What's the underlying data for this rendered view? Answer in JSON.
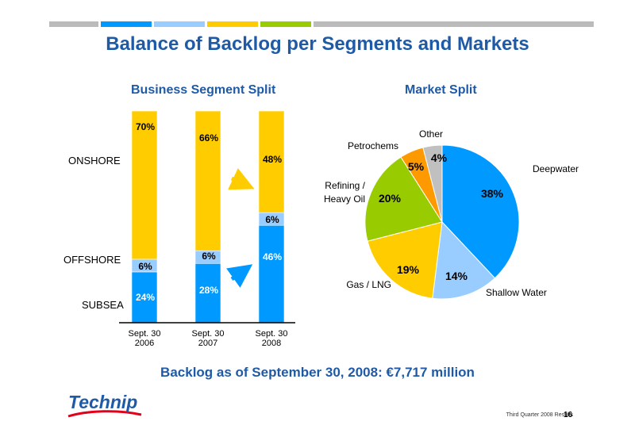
{
  "title": "Balance of Backlog per Segments and Markets",
  "segment_title": "Business Segment Split",
  "market_title": "Market Split",
  "segment_labels": [
    "ONSHORE",
    "OFFSHORE",
    "SUBSEA"
  ],
  "backlog_text": "Backlog as of September 30, 2008: €7,717 million",
  "footer": {
    "text": "Third Quarter 2008 Results",
    "page": "16"
  },
  "logo": "Technip",
  "colors": {
    "onshore": "#ffcc00",
    "offshore": "#99ccff",
    "subsea": "#0099ff",
    "title": "#1f5aa6"
  },
  "chart_data": [
    {
      "type": "bar",
      "stacked": true,
      "categories": [
        [
          "Sept. 30",
          "2006"
        ],
        [
          "Sept. 30",
          "2007"
        ],
        [
          "Sept. 30",
          "2008"
        ]
      ],
      "series": [
        {
          "name": "SUBSEA",
          "values": [
            24,
            28,
            46
          ],
          "labels": [
            "24%",
            "28%",
            "46%"
          ]
        },
        {
          "name": "OFFSHORE",
          "values": [
            6,
            6,
            6
          ],
          "labels": [
            "6%",
            "6%",
            "6%"
          ]
        },
        {
          "name": "ONSHORE",
          "values": [
            70,
            66,
            48
          ],
          "labels": [
            "70%",
            "66%",
            "48%"
          ]
        }
      ],
      "ylim": [
        0,
        100
      ]
    },
    {
      "type": "pie",
      "slices": [
        {
          "name": "Deepwater",
          "value": 38,
          "label": "38%",
          "color": "#0099ff"
        },
        {
          "name": "Shallow Water",
          "value": 14,
          "label": "14%",
          "color": "#99ccff"
        },
        {
          "name": "Gas / LNG",
          "value": 19,
          "label": "19%",
          "color": "#ffcc00"
        },
        {
          "name": "Refining / Heavy Oil",
          "value": 20,
          "label": "20%",
          "color": "#99cc00"
        },
        {
          "name": "Petrochems",
          "value": 5,
          "label": "5%",
          "color": "#ff9900"
        },
        {
          "name": "Other",
          "value": 4,
          "label": "4%",
          "color": "#c0c0c0"
        }
      ]
    }
  ]
}
